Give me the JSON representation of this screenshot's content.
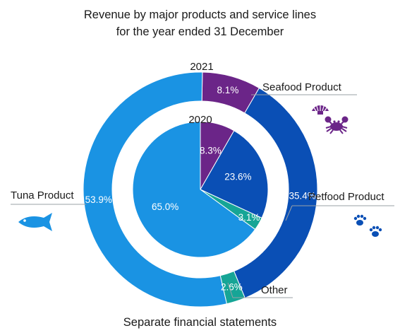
{
  "title_line1": "Revenue by major products and service lines",
  "title_line2": "for the year ended 31 December",
  "footer": "Separate financial statements",
  "chart_data": {
    "type": "pie",
    "rings": [
      {
        "name": "2021",
        "ring": "outer",
        "slices": [
          {
            "label": "Seafood Product",
            "value": 8.1,
            "value_label": "8.1%",
            "color": "#6b2588"
          },
          {
            "label": "Petfood Product",
            "value": 35.4,
            "value_label": "35.4%",
            "color": "#0a4fb5"
          },
          {
            "label": "Other",
            "value": 2.6,
            "value_label": "2.6%",
            "color": "#16a596"
          },
          {
            "label": "Tuna Product",
            "value": 53.9,
            "value_label": "53.9%",
            "color": "#1a93e3"
          }
        ]
      },
      {
        "name": "2020",
        "ring": "inner",
        "slices": [
          {
            "label": "Seafood Product",
            "value": 8.3,
            "value_label": "8.3%",
            "color": "#6b2588"
          },
          {
            "label": "Petfood Product",
            "value": 23.6,
            "value_label": "23.6%",
            "color": "#0a4fb5"
          },
          {
            "label": "Other",
            "value": 3.1,
            "value_label": "3.1%",
            "color": "#16a596"
          },
          {
            "label": "Tuna Product",
            "value": 65.0,
            "value_label": "65.0%",
            "color": "#1a93e3"
          }
        ]
      }
    ],
    "category_labels": [
      "Seafood Product",
      "Petfood Product",
      "Other",
      "Tuna Product"
    ],
    "icons": {
      "seafood": [
        "shell-icon",
        "crab-icon"
      ],
      "petfood": [
        "paw-icon"
      ],
      "tuna": [
        "fish-icon"
      ]
    },
    "icon_colors": {
      "seafood": "#6b2588",
      "petfood": "#0a4fb5",
      "tuna": "#1a93e3"
    }
  }
}
